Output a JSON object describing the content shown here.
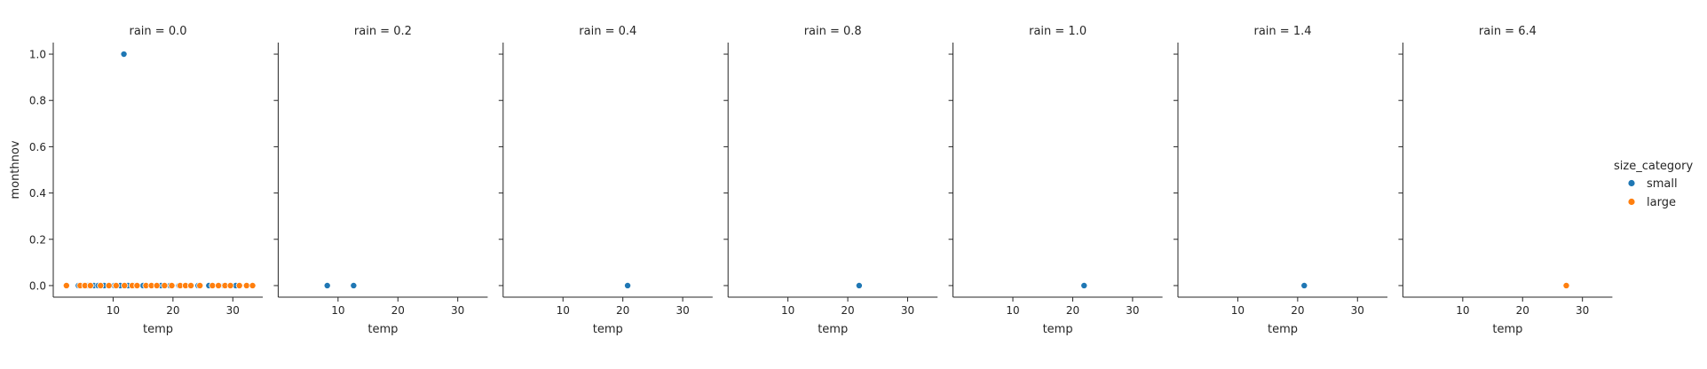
{
  "chart_data": {
    "type": "scatter",
    "facet_variable": "rain",
    "xlabel": "temp",
    "ylabel": "monthnov",
    "xlim": [
      0,
      35
    ],
    "ylim": [
      -0.05,
      1.05
    ],
    "xticks": [
      10,
      20,
      30
    ],
    "xtick_labels": [
      "10",
      "20",
      "30"
    ],
    "yticks": [
      0.0,
      0.2,
      0.4,
      0.6,
      0.8,
      1.0
    ],
    "ytick_labels": [
      "0.0",
      "0.2",
      "0.4",
      "0.6",
      "0.8",
      "1.0"
    ],
    "grid": false,
    "legend": {
      "title": "size_category",
      "placement": "right",
      "entries": [
        {
          "label": "small",
          "color": "#1f77b4"
        },
        {
          "label": "large",
          "color": "#ff7f0e"
        }
      ]
    },
    "panels": [
      {
        "title": "rain = 0.0",
        "series": [
          {
            "name": "small",
            "color": "#1f77b4",
            "x": [
              11.8,
              4.2,
              5.0,
              5.8,
              6.8,
              7.5,
              8.5,
              10.2,
              11.2,
              12.5,
              13.5,
              15.0,
              16.5,
              18.0,
              19.5,
              21.0,
              22.8,
              24.2,
              26.0,
              28.5,
              30.5
            ],
            "y": [
              1,
              0,
              0,
              0,
              0,
              0,
              0,
              0,
              0,
              0,
              0,
              0,
              0,
              0,
              0,
              0,
              0,
              0,
              0,
              0,
              0
            ]
          },
          {
            "name": "large",
            "color": "#ff7f0e",
            "x": [
              2.2,
              4.5,
              5.3,
              6.2,
              7.9,
              9.3,
              10.5,
              11.9,
              13.2,
              14.0,
              15.5,
              16.4,
              17.3,
              18.6,
              19.8,
              21.2,
              22.1,
              23.0,
              24.5,
              26.6,
              27.6,
              28.7,
              29.6,
              31.1,
              32.3,
              33.3
            ],
            "y": [
              0,
              0,
              0,
              0,
              0,
              0,
              0,
              0,
              0,
              0,
              0,
              0,
              0,
              0,
              0,
              0,
              0,
              0,
              0,
              0,
              0,
              0,
              0,
              0,
              0,
              0
            ]
          }
        ]
      },
      {
        "title": "rain = 0.2",
        "series": [
          {
            "name": "small",
            "color": "#1f77b4",
            "x": [
              8.2,
              12.6
            ],
            "y": [
              0,
              0
            ]
          }
        ]
      },
      {
        "title": "rain = 0.4",
        "series": [
          {
            "name": "small",
            "color": "#1f77b4",
            "x": [
              20.8
            ],
            "y": [
              0
            ]
          }
        ]
      },
      {
        "title": "rain = 0.8",
        "series": [
          {
            "name": "small",
            "color": "#1f77b4",
            "x": [
              21.9
            ],
            "y": [
              0
            ]
          }
        ]
      },
      {
        "title": "rain = 1.0",
        "series": [
          {
            "name": "small",
            "color": "#1f77b4",
            "x": [
              21.9
            ],
            "y": [
              0
            ]
          }
        ]
      },
      {
        "title": "rain = 1.4",
        "series": [
          {
            "name": "small",
            "color": "#1f77b4",
            "x": [
              21.1
            ],
            "y": [
              0
            ]
          }
        ]
      },
      {
        "title": "rain = 6.4",
        "series": [
          {
            "name": "large",
            "color": "#ff7f0e",
            "x": [
              27.3
            ],
            "y": [
              0
            ]
          }
        ]
      }
    ]
  }
}
